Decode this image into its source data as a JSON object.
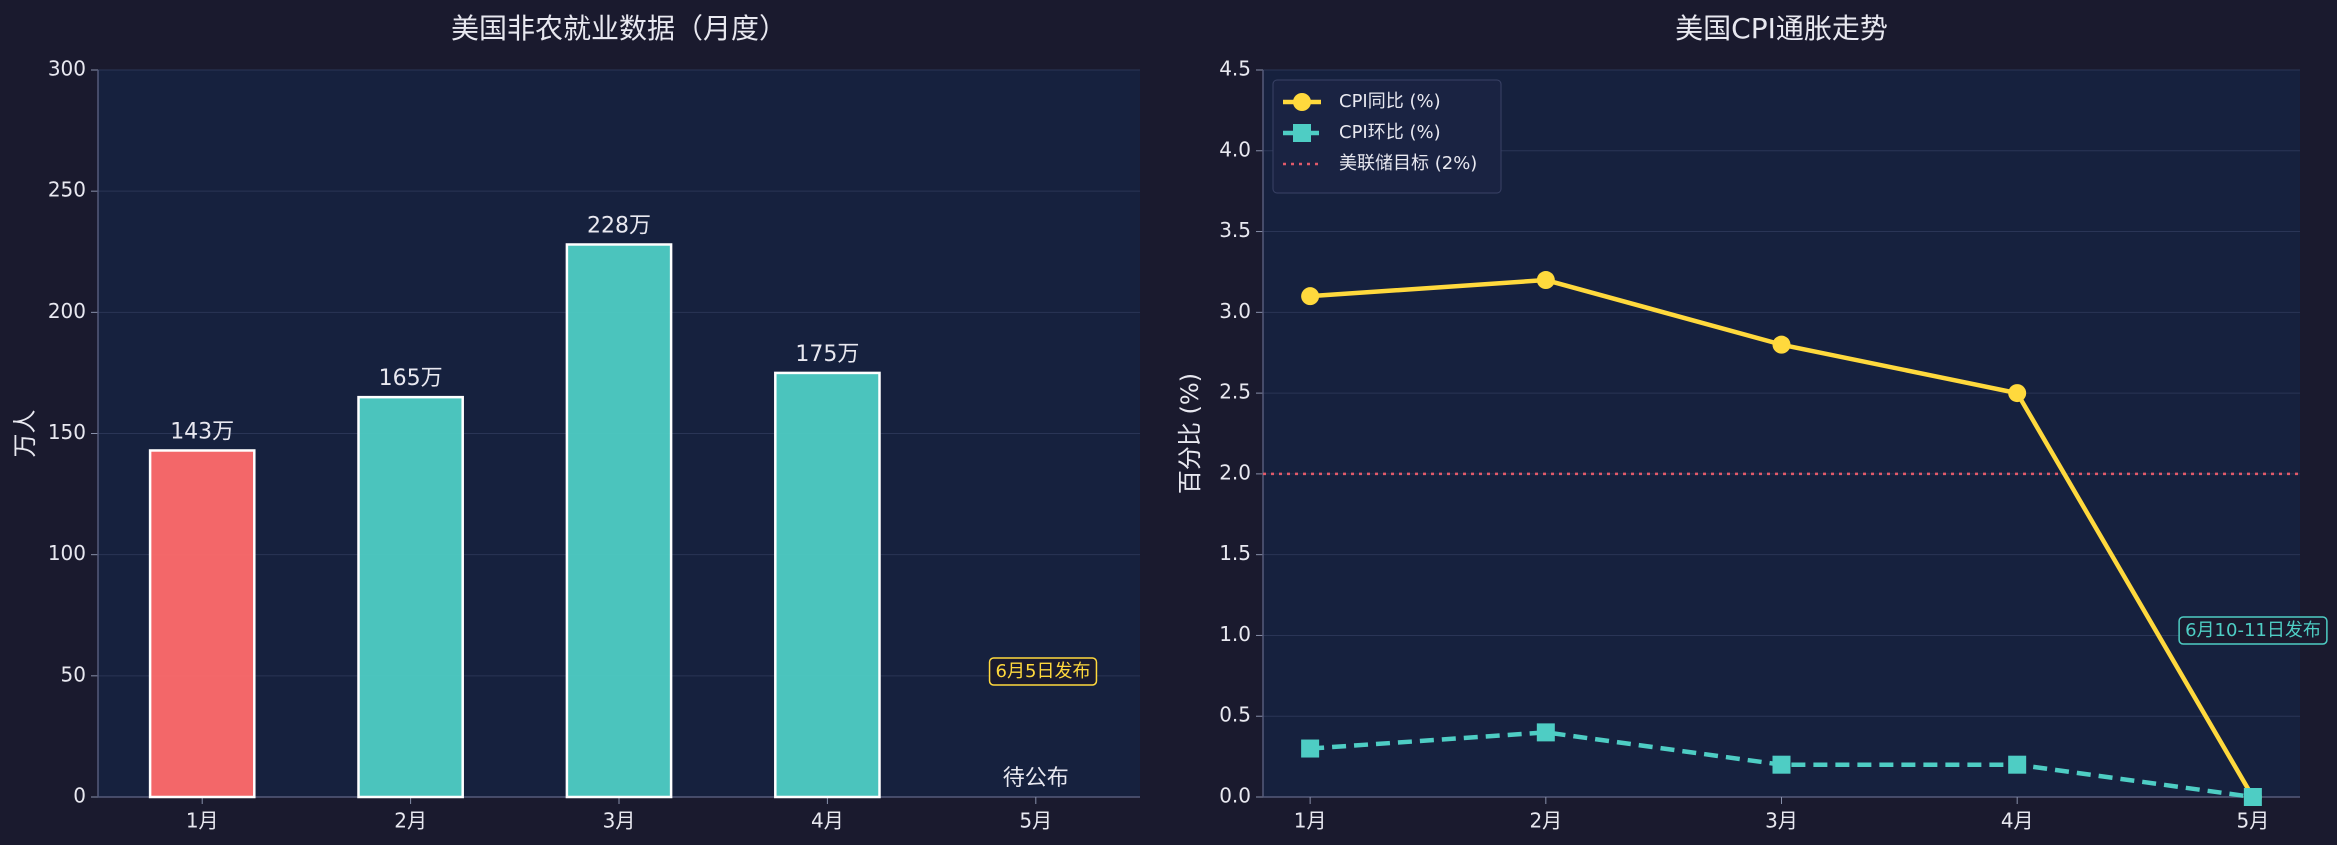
{
  "chart_data": [
    {
      "type": "bar",
      "title": "美国非农就业数据（月度）",
      "ylabel": "万人",
      "categories": [
        "1月",
        "2月",
        "3月",
        "4月",
        "5月"
      ],
      "values": [
        143,
        165,
        228,
        175,
        0
      ],
      "value_labels": [
        "143万",
        "165万",
        "228万",
        "175万",
        "待公布"
      ],
      "colors": [
        "#ff6b6b",
        "#4ecdc4",
        "#4ecdc4",
        "#4ecdc4",
        "#4ecdc4"
      ],
      "ylim": [
        0,
        300
      ],
      "yticks": [
        0,
        50,
        100,
        150,
        200,
        250,
        300
      ],
      "grid": true,
      "annotations": [
        {
          "text": "6月5日发布",
          "color": "#ffd93d"
        }
      ]
    },
    {
      "type": "line",
      "title": "美国CPI通胀走势",
      "ylabel": "百分比 (%)",
      "categories": [
        "1月",
        "2月",
        "3月",
        "4月",
        "5月"
      ],
      "series": [
        {
          "name": "CPI同比 (%)",
          "color": "#ffd93d",
          "marker": "circle",
          "linestyle": "solid",
          "values": [
            3.1,
            3.2,
            2.8,
            2.5,
            0
          ]
        },
        {
          "name": "CPI环比 (%)",
          "color": "#4ecdc4",
          "marker": "square",
          "linestyle": "dashed",
          "values": [
            0.3,
            0.4,
            0.2,
            0.2,
            0
          ]
        }
      ],
      "hlines": [
        {
          "name": "美联储目标 (2%)",
          "value": 2,
          "color": "#e05a6a",
          "linestyle": "dotted"
        }
      ],
      "ylim": [
        0,
        4.5
      ],
      "yticks": [
        {
          "value": 0,
          "label": "0.0"
        },
        0.5,
        {
          "value": 1,
          "label": "1.0"
        },
        1.5,
        {
          "value": 2,
          "label": "2.0"
        },
        2.5,
        {
          "value": 3,
          "label": "3.0"
        },
        3.5,
        {
          "value": 4,
          "label": "4.0"
        },
        4.5
      ],
      "grid": true,
      "legend": "upper left",
      "annotations": [
        {
          "text": "6月10-11日发布",
          "color": "#4ecdc4"
        }
      ]
    }
  ]
}
